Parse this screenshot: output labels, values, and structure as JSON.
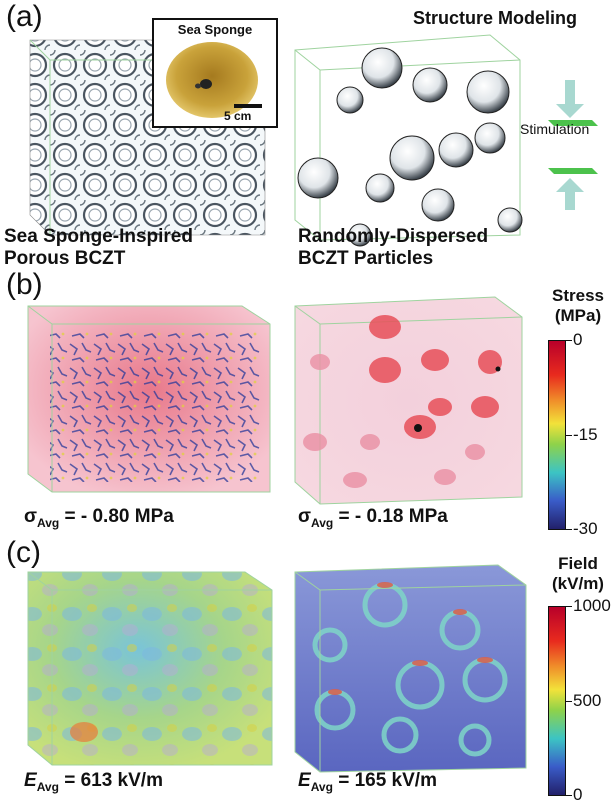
{
  "panel_a": {
    "label": "(a)",
    "header": "Structure Modeling",
    "inset": {
      "title": "Sea Sponge",
      "scalebar": "5 cm"
    },
    "left_caption": [
      "Sea Sponge-Inspired",
      "Porous BCZT"
    ],
    "right_caption": [
      "Randomly-Dispersed",
      "BCZT Particles"
    ],
    "stimulation_label": "Stimulation"
  },
  "panel_b": {
    "label": "(b)",
    "colorbar": {
      "title": [
        "Stress",
        "(MPa)"
      ],
      "ticks": [
        "0",
        "-15",
        "-30"
      ],
      "range": [
        -30,
        0
      ]
    },
    "left_avg": {
      "symbol": "σ",
      "sub": "Avg",
      "text": " = - 0.80 MPa"
    },
    "right_avg": {
      "symbol": "σ",
      "sub": "Avg",
      "text": " = - 0.18 MPa"
    }
  },
  "panel_c": {
    "label": "(c)",
    "colorbar": {
      "title": [
        "Field",
        "(kV/m)"
      ],
      "ticks": [
        "1000",
        "500",
        "0"
      ],
      "range": [
        0,
        1000
      ]
    },
    "left_avg": {
      "symbol": "E",
      "sub": "Avg",
      "text": " = 613 kV/m"
    },
    "right_avg": {
      "symbol": "E",
      "sub": "Avg",
      "text": " = 165 kV/m"
    }
  },
  "colors": {
    "sponge": "#c9a23a",
    "stress_bg": "#f2b4c4",
    "field_left": "#9ad28a",
    "field_right": "#6a78c8"
  }
}
